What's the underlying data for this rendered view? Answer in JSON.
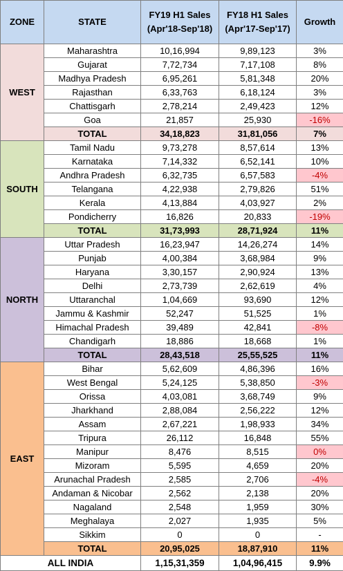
{
  "header": {
    "zone": "ZONE",
    "state": "STATE",
    "fy19_line1": "FY19 H1 Sales",
    "fy19_line2": "(Apr'18-Sep'18)",
    "fy18_line1": "FY18 H1 Sales",
    "fy18_line2": "(Apr'17-Sep'17)",
    "growth": "Growth"
  },
  "colors": {
    "header_bg": "#c5d9f1",
    "negative_bg": "#ffc7ce",
    "negative_text": "#c00000"
  },
  "zones": [
    {
      "name": "WEST",
      "color": "#f2dcdb",
      "rows": [
        {
          "state": "Maharashtra",
          "fy19": "10,16,994",
          "fy18": "9,89,123",
          "growth": "3%",
          "negative": false
        },
        {
          "state": "Gujarat",
          "fy19": "7,72,734",
          "fy18": "7,17,108",
          "growth": "8%",
          "negative": false
        },
        {
          "state": "Madhya Pradesh",
          "fy19": "6,95,261",
          "fy18": "5,81,348",
          "growth": "20%",
          "negative": false
        },
        {
          "state": "Rajasthan",
          "fy19": "6,33,763",
          "fy18": "6,18,124",
          "growth": "3%",
          "negative": false
        },
        {
          "state": "Chattisgarh",
          "fy19": "2,78,214",
          "fy18": "2,49,423",
          "growth": "12%",
          "negative": false
        },
        {
          "state": "Goa",
          "fy19": "21,857",
          "fy18": "25,930",
          "growth": "-16%",
          "negative": true
        }
      ],
      "total": {
        "label": "TOTAL",
        "fy19": "34,18,823",
        "fy18": "31,81,056",
        "growth": "7%"
      }
    },
    {
      "name": "SOUTH",
      "color": "#d8e4bc",
      "rows": [
        {
          "state": "Tamil Nadu",
          "fy19": "9,73,278",
          "fy18": "8,57,614",
          "growth": "13%",
          "negative": false
        },
        {
          "state": "Karnataka",
          "fy19": "7,14,332",
          "fy18": "6,52,141",
          "growth": "10%",
          "negative": false
        },
        {
          "state": "Andhra Pradesh",
          "fy19": "6,32,735",
          "fy18": "6,57,583",
          "growth": "-4%",
          "negative": true
        },
        {
          "state": "Telangana",
          "fy19": "4,22,938",
          "fy18": "2,79,826",
          "growth": "51%",
          "negative": false
        },
        {
          "state": "Kerala",
          "fy19": "4,13,884",
          "fy18": "4,03,927",
          "growth": "2%",
          "negative": false
        },
        {
          "state": "Pondicherry",
          "fy19": "16,826",
          "fy18": "20,833",
          "growth": "-19%",
          "negative": true
        }
      ],
      "total": {
        "label": "TOTAL",
        "fy19": "31,73,993",
        "fy18": "28,71,924",
        "growth": "11%"
      }
    },
    {
      "name": "NORTH",
      "color": "#ccc0da",
      "rows": [
        {
          "state": "Uttar Pradesh",
          "fy19": "16,23,947",
          "fy18": "14,26,274",
          "growth": "14%",
          "negative": false
        },
        {
          "state": "Punjab",
          "fy19": "4,00,384",
          "fy18": "3,68,984",
          "growth": "9%",
          "negative": false
        },
        {
          "state": "Haryana",
          "fy19": "3,30,157",
          "fy18": "2,90,924",
          "growth": "13%",
          "negative": false
        },
        {
          "state": "Delhi",
          "fy19": "2,73,739",
          "fy18": "2,62,619",
          "growth": "4%",
          "negative": false
        },
        {
          "state": "Uttaranchal",
          "fy19": "1,04,669",
          "fy18": "93,690",
          "growth": "12%",
          "negative": false
        },
        {
          "state": "Jammu & Kashmir",
          "fy19": "52,247",
          "fy18": "51,525",
          "growth": "1%",
          "negative": false
        },
        {
          "state": "Himachal Pradesh",
          "fy19": "39,489",
          "fy18": "42,841",
          "growth": "-8%",
          "negative": true
        },
        {
          "state": "Chandigarh",
          "fy19": "18,886",
          "fy18": "18,668",
          "growth": "1%",
          "negative": false
        }
      ],
      "total": {
        "label": "TOTAL",
        "fy19": "28,43,518",
        "fy18": "25,55,525",
        "growth": "11%"
      }
    },
    {
      "name": "EAST",
      "color": "#fabf8f",
      "rows": [
        {
          "state": "Bihar",
          "fy19": "5,62,609",
          "fy18": "4,86,396",
          "growth": "16%",
          "negative": false
        },
        {
          "state": "West Bengal",
          "fy19": "5,24,125",
          "fy18": "5,38,850",
          "growth": "-3%",
          "negative": true
        },
        {
          "state": "Orissa",
          "fy19": "4,03,081",
          "fy18": "3,68,749",
          "growth": "9%",
          "negative": false
        },
        {
          "state": "Jharkhand",
          "fy19": "2,88,084",
          "fy18": "2,56,222",
          "growth": "12%",
          "negative": false
        },
        {
          "state": "Assam",
          "fy19": "2,67,221",
          "fy18": "1,98,933",
          "growth": "34%",
          "negative": false
        },
        {
          "state": "Tripura",
          "fy19": "26,112",
          "fy18": "16,848",
          "growth": "55%",
          "negative": false
        },
        {
          "state": "Manipur",
          "fy19": "8,476",
          "fy18": "8,515",
          "growth": "0%",
          "negative": true
        },
        {
          "state": "Mizoram",
          "fy19": "5,595",
          "fy18": "4,659",
          "growth": "20%",
          "negative": false
        },
        {
          "state": "Arunachal Pradesh",
          "fy19": "2,585",
          "fy18": "2,706",
          "growth": "-4%",
          "negative": true
        },
        {
          "state": "Andaman & Nicobar",
          "fy19": "2,562",
          "fy18": "2,138",
          "growth": "20%",
          "negative": false
        },
        {
          "state": "Nagaland",
          "fy19": "2,548",
          "fy18": "1,959",
          "growth": "30%",
          "negative": false
        },
        {
          "state": "Meghalaya",
          "fy19": "2,027",
          "fy18": "1,935",
          "growth": "5%",
          "negative": false
        },
        {
          "state": "Sikkim",
          "fy19": "0",
          "fy18": "0",
          "growth": "-",
          "negative": false
        }
      ],
      "total": {
        "label": "TOTAL",
        "fy19": "20,95,025",
        "fy18": "18,87,910",
        "growth": "11%"
      }
    }
  ],
  "all_india": {
    "label": "ALL INDIA",
    "fy19": "1,15,31,359",
    "fy18": "1,04,96,415",
    "growth": "9.9%"
  }
}
